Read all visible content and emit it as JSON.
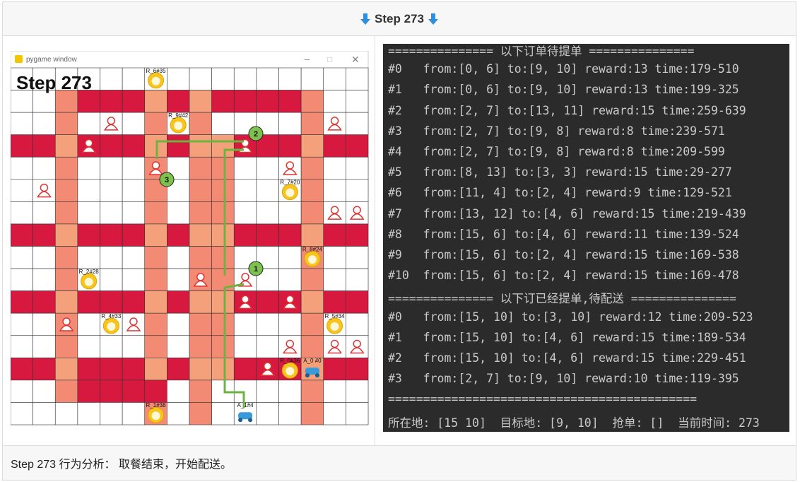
{
  "header": {
    "title": "Step 273"
  },
  "game": {
    "window_title": "pygame window",
    "step_label": "Step 273",
    "restaurants": [
      "R_6#35",
      "R_9#42",
      "R_7#20",
      "R_8#24",
      "R_2#28",
      "R_4#33",
      "R_5#34",
      "R_0#36",
      "R_1#38"
    ],
    "riders": [
      "A_0 #0",
      "A_1#4"
    ],
    "route_markers": [
      "1",
      "2",
      "3"
    ]
  },
  "terminal": {
    "lines": [
      "=============== 以下订单待提单 ===============",
      "#0   from:[0, 6] to:[9, 10] reward:13 time:179-510",
      "#1   from:[0, 6] to:[9, 10] reward:13 time:199-325",
      "#2   from:[2, 7] to:[13, 11] reward:15 time:259-639",
      "#3   from:[2, 7] to:[9, 8] reward:8 time:239-571",
      "#4   from:[2, 7] to:[9, 8] reward:8 time:209-599",
      "#5   from:[8, 13] to:[3, 3] reward:15 time:29-277",
      "#6   from:[11, 4] to:[2, 4] reward:9 time:129-521",
      "#7   from:[13, 12] to:[4, 6] reward:15 time:219-439",
      "#8   from:[15, 6] to:[4, 6] reward:11 time:139-524",
      "#9   from:[15, 6] to:[2, 4] reward:15 time:169-538",
      "#10  from:[15, 6] to:[2, 4] reward:15 time:169-478",
      "=============== 以下订已经提单,待配送 ===============",
      "#0   from:[15, 10] to:[3, 10] reward:12 time:209-523",
      "#1   from:[15, 10] to:[4, 6] reward:15 time:189-534",
      "#2   from:[15, 10] to:[4, 6] reward:15 time:229-451",
      "#3   from:[2, 7] to:[9, 10] reward:10 time:119-395",
      "============================================",
      "所在地: [15 10]  目标地: [9, 10]  抢单: []  当前时间: 273"
    ]
  },
  "footer": {
    "text": "Step 273 行为分析： 取餐结束，开始配送。"
  }
}
